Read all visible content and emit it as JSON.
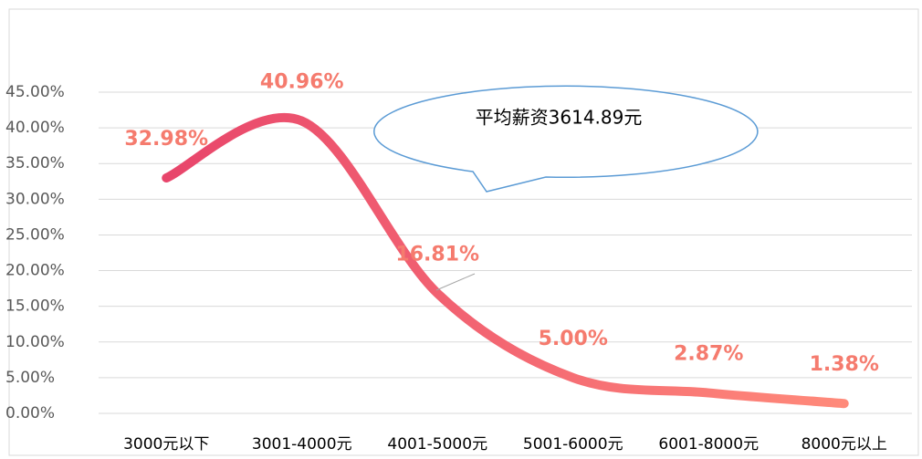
{
  "chart_data": {
    "type": "line",
    "categories": [
      "3000元以下",
      "3001-4000元",
      "4001-5000元",
      "5001-6000元",
      "6001-8000元",
      "8000元以上"
    ],
    "values": [
      32.98,
      40.96,
      16.81,
      5.0,
      2.87,
      1.38
    ],
    "value_labels": [
      "32.98%",
      "40.96%",
      "16.81%",
      "5.00%",
      "2.87%",
      "1.38%"
    ],
    "colors": [
      "#e8456b",
      "#ff8a7a"
    ],
    "label_color": "#f57b6e",
    "ylim": [
      0,
      45
    ],
    "yticks": [
      {
        "value": 0,
        "label": "0.00%"
      },
      {
        "value": 5,
        "label": "5.00%"
      },
      {
        "value": 10,
        "label": "10.00%"
      },
      {
        "value": 15,
        "label": "15.00%"
      },
      {
        "value": 20,
        "label": "20.00%"
      },
      {
        "value": 25,
        "label": "25.00%"
      },
      {
        "value": 30,
        "label": "30.00%"
      },
      {
        "value": 35,
        "label": "35.00%"
      },
      {
        "value": 40,
        "label": "40.00%"
      },
      {
        "value": 45,
        "label": "45.00%"
      }
    ],
    "grid": true,
    "smooth": true,
    "annotation": "平均薪资3614.89元"
  }
}
